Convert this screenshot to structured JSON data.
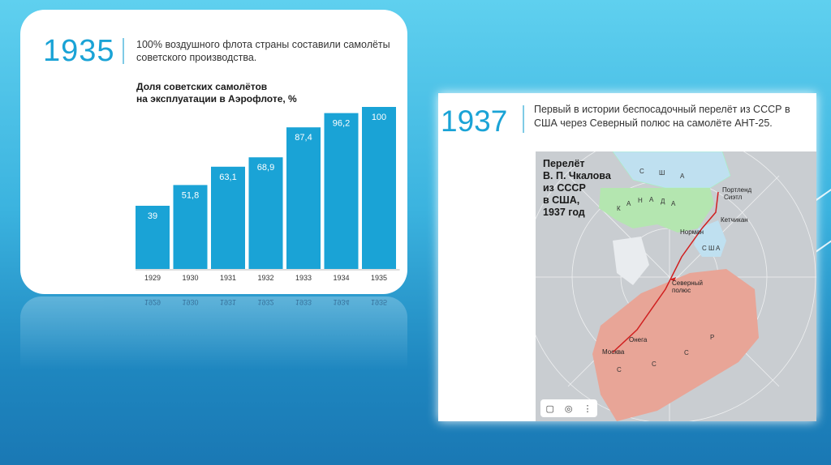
{
  "left_card": {
    "year": "1935",
    "description": "100% воздушного флота страны составили самолёты советского производства.",
    "chart_title_line1": "Доля советских самолётов",
    "chart_title_line2": "на эксплуатации в Аэрофлоте, %"
  },
  "right_card": {
    "year": "1937",
    "description": "Первый в истории беспосадочный перелёт из СССР в США через Северный полюс на самолёте АНТ-25.",
    "map": {
      "title": "Перелёт\nВ. П. Чкалова\nиз СССР\nв США,\n1937 год",
      "labels": {
        "portland": "Портленд",
        "seattle": "Сиэтл",
        "ketchikan": "Кетчикан",
        "norman": "Норман",
        "north_pole": "Северный\nполюс",
        "onega": "Онега",
        "moscow": "Москва"
      },
      "country_letters": {
        "usa_top": [
          "С",
          "Ш",
          "А"
        ],
        "canada": [
          "К",
          "А",
          "Н",
          "А",
          "Д",
          "А"
        ],
        "usa_alaska": [
          "С",
          "Ш",
          "А"
        ],
        "ussr": [
          "С",
          "С",
          "С",
          "Р"
        ]
      },
      "toolbar_icons": [
        "bookmark-icon",
        "lens-icon",
        "more-icon"
      ]
    }
  },
  "colors": {
    "accent": "#1aa3d6",
    "bar": "#1aa3d6",
    "ussr": "#e8a597",
    "canada": "#b4e6b0",
    "usa": "#bfe0f0",
    "route": "#d02020"
  },
  "chart_data": {
    "type": "bar",
    "title": "Доля советских самолётов на эксплуатации в Аэрофлоте, %",
    "categories": [
      "1929",
      "1930",
      "1931",
      "1932",
      "1933",
      "1934",
      "1935"
    ],
    "values": [
      39,
      51.8,
      63.1,
      68.9,
      87.4,
      96.2,
      100
    ],
    "value_labels": [
      "39",
      "51,8",
      "63,1",
      "68,9",
      "87,4",
      "96,2",
      "100"
    ],
    "ylim": [
      0,
      100
    ]
  }
}
